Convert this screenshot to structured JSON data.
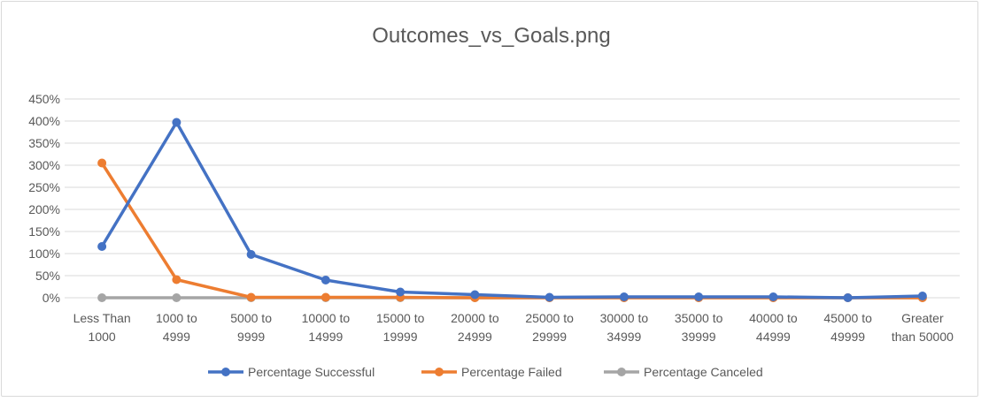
{
  "chart_data": {
    "type": "line",
    "title": "Outcomes_vs_Goals.png",
    "xlabel": "",
    "ylabel": "",
    "categories": [
      [
        "Less Than",
        "1000"
      ],
      [
        "1000 to",
        "4999"
      ],
      [
        "5000 to",
        "9999"
      ],
      [
        "10000 to",
        "14999"
      ],
      [
        "15000 to",
        "19999"
      ],
      [
        "20000 to",
        "24999"
      ],
      [
        "25000 to",
        "29999"
      ],
      [
        "30000 to",
        "34999"
      ],
      [
        "35000 to",
        "39999"
      ],
      [
        "40000 to",
        "44999"
      ],
      [
        "45000 to",
        "49999"
      ],
      [
        "Greater",
        "than 50000"
      ]
    ],
    "y_ticks": [
      "0%",
      "50%",
      "100%",
      "150%",
      "200%",
      "250%",
      "300%",
      "350%",
      "400%",
      "450%"
    ],
    "ylim": [
      0,
      450
    ],
    "grid": true,
    "legend_position": "bottom",
    "series": [
      {
        "name": "Percentage Successful",
        "color": "#4472c4",
        "values": [
          116,
          397,
          98,
          40,
          13,
          7,
          1,
          2,
          2,
          2,
          0,
          4
        ]
      },
      {
        "name": "Percentage Failed",
        "color": "#ed7d31",
        "values": [
          305,
          41,
          1,
          1,
          1,
          0,
          0,
          0,
          0,
          0,
          0,
          0
        ]
      },
      {
        "name": "Percentage Canceled",
        "color": "#a5a5a5",
        "values": [
          0,
          0,
          0,
          0,
          0,
          0,
          0,
          0,
          0,
          0,
          0,
          0
        ]
      }
    ]
  }
}
